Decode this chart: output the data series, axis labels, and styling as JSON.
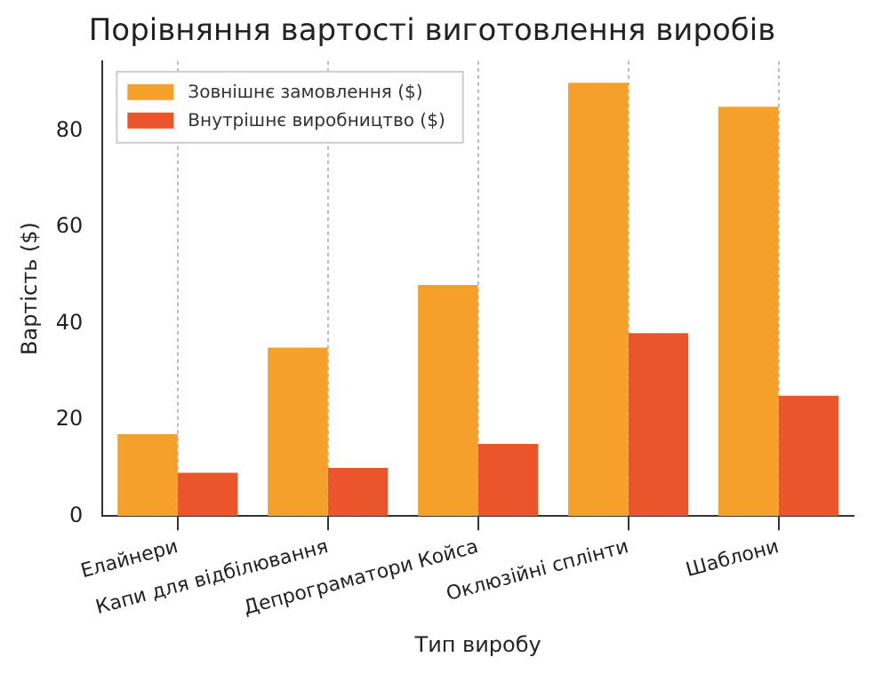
{
  "chart_data": {
    "type": "bar",
    "title": "Порівняння вартості виготовлення виробів",
    "xlabel": "Тип виробу",
    "ylabel": "Вартість ($)",
    "categories": [
      "Елайнери",
      "Капи для відбілювання",
      "Депрограматори Койса",
      "Оклюзійні сплінти",
      "Шаблони"
    ],
    "series": [
      {
        "name": "Зовнішнє замовлення ($)",
        "color": "#f5a02a",
        "values": [
          17,
          35,
          48,
          90,
          85
        ]
      },
      {
        "name": "Внутрішнє виробництво ($)",
        "color": "#ea552b",
        "values": [
          9,
          10,
          15,
          38,
          25
        ]
      }
    ],
    "ylim": [
      0,
      94.5
    ],
    "yticks": [
      0,
      20,
      40,
      60,
      80
    ],
    "grid": "x",
    "legend": "top left"
  }
}
